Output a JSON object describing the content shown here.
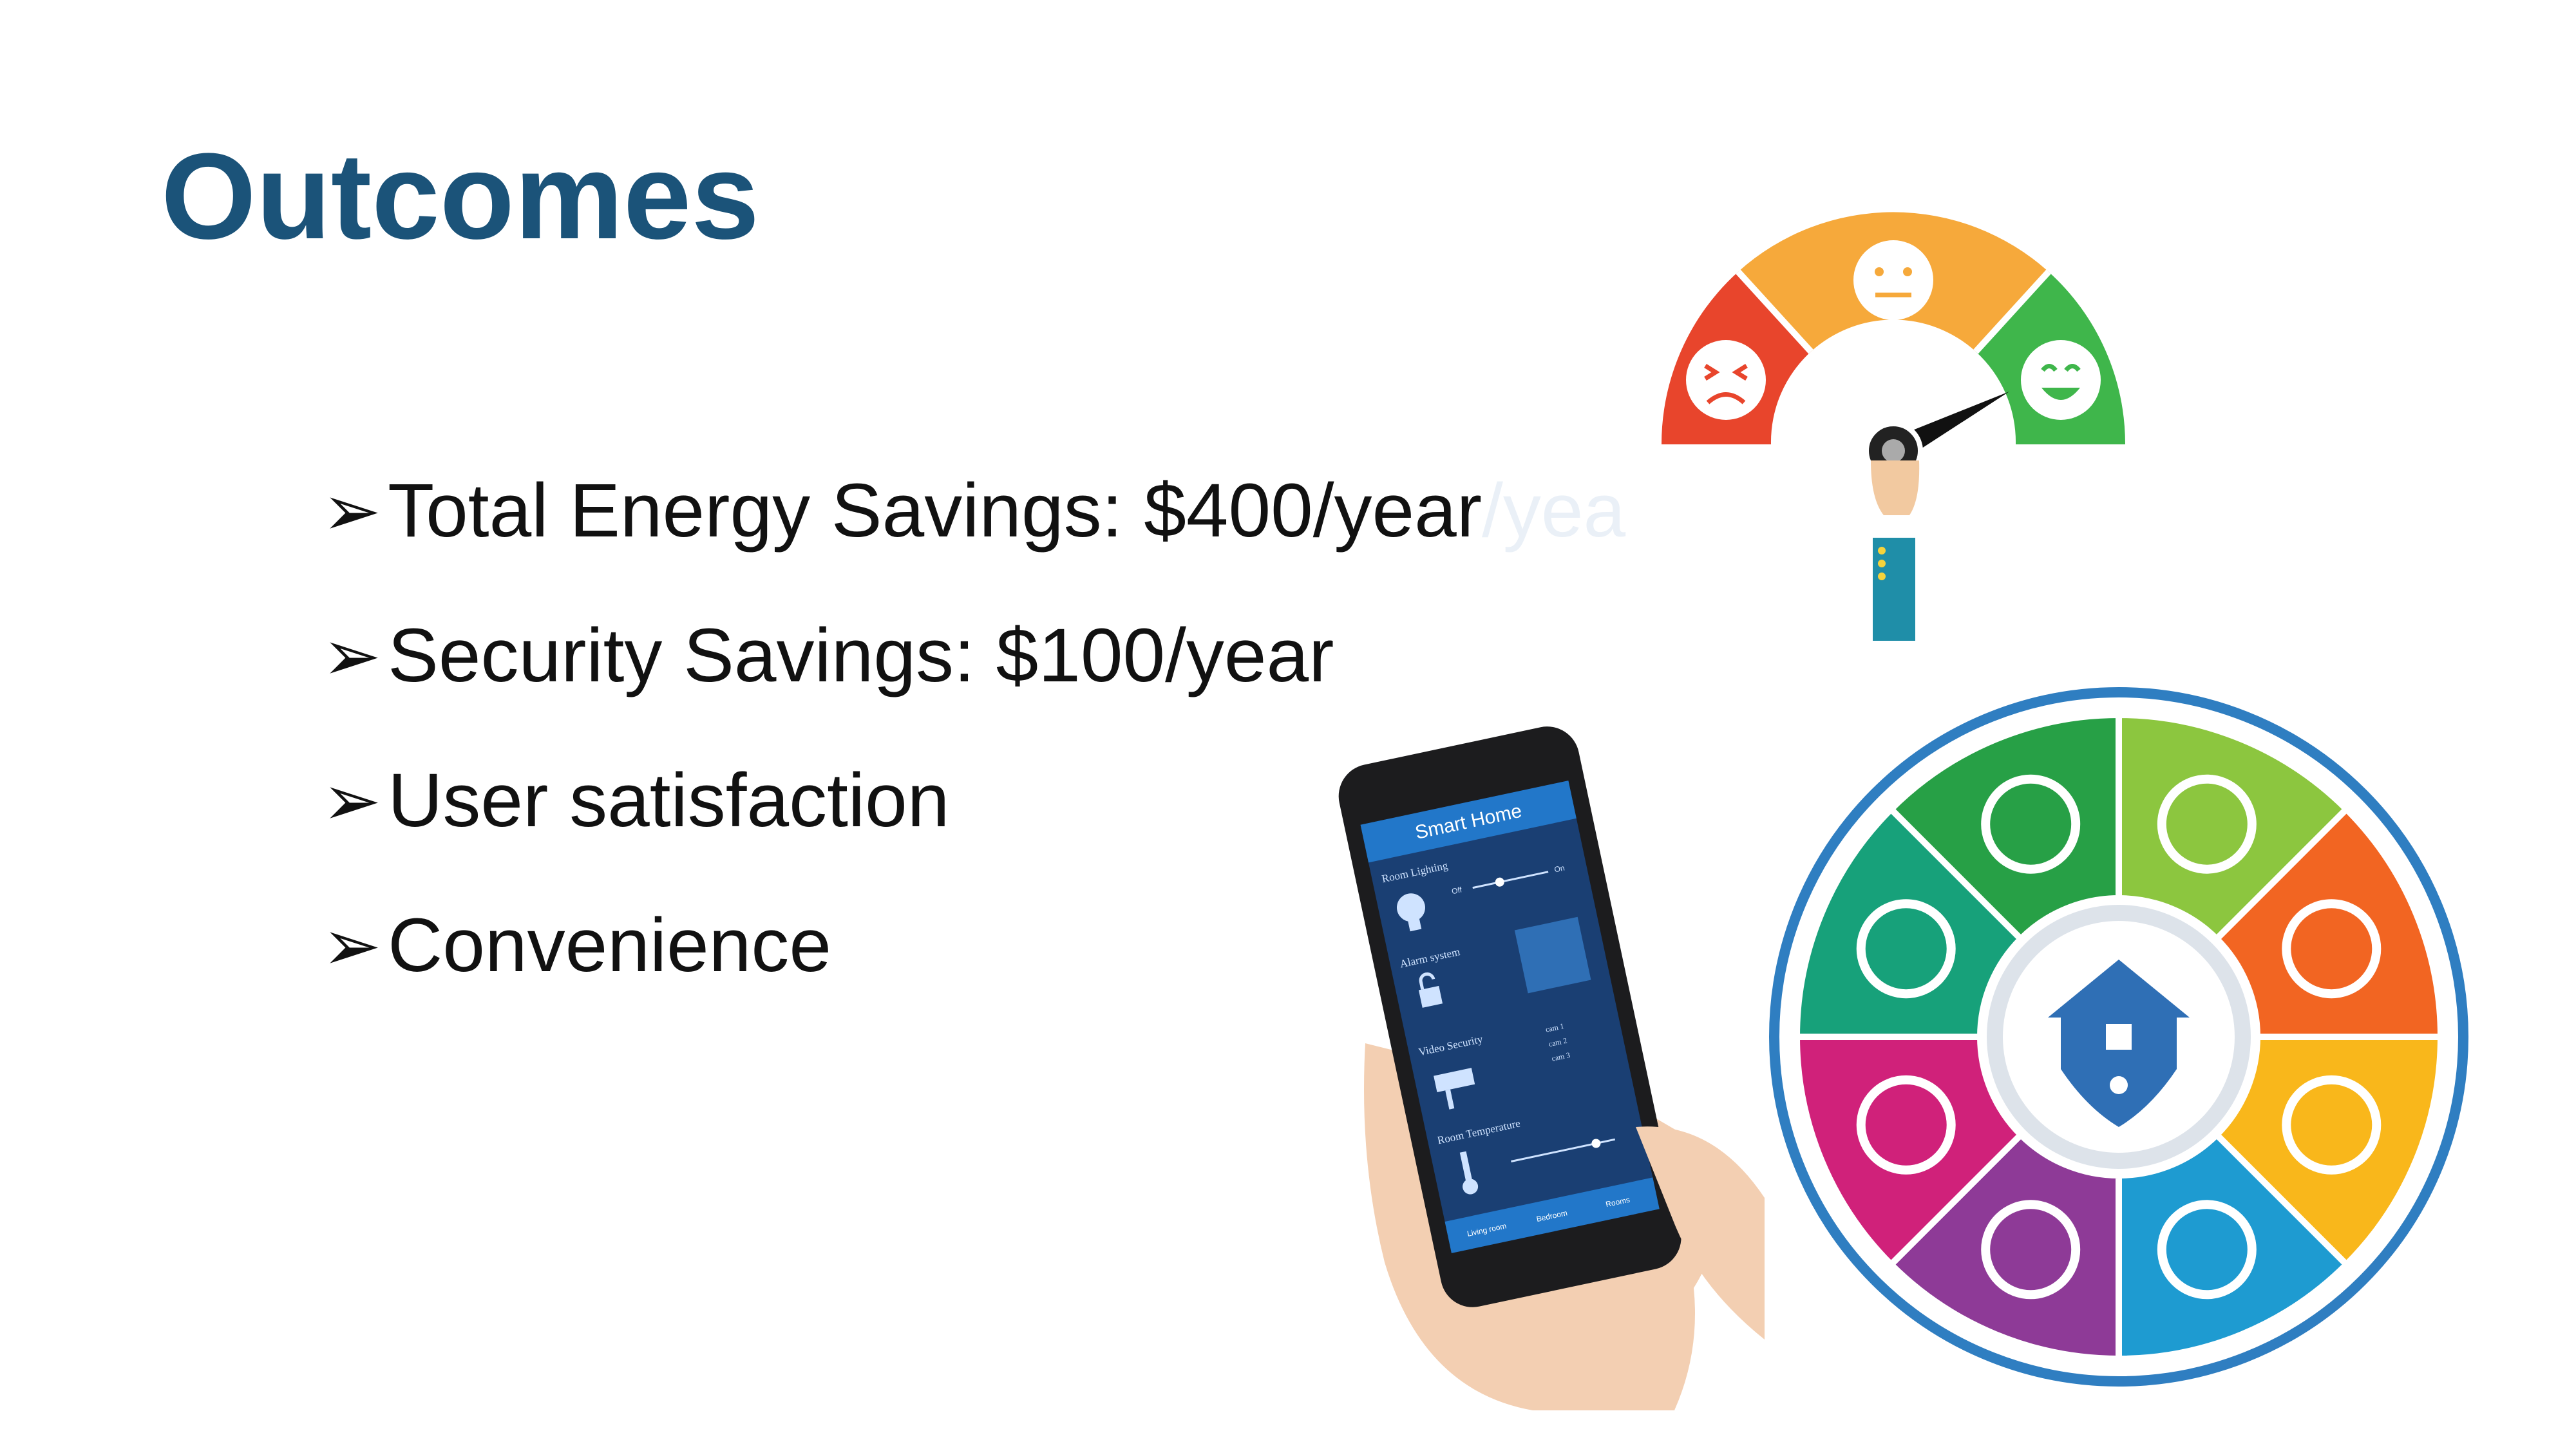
{
  "slide": {
    "title": "Outcomes",
    "bullets": [
      {
        "marker": "➢",
        "text": "Total Energy Savings: $400/year",
        "ghost_suffix": "/yea"
      },
      {
        "marker": "➢",
        "text": "Security Savings: $100/year",
        "ghost_suffix": ""
      },
      {
        "marker": "➢",
        "text": "User satisfaction",
        "ghost_suffix": ""
      },
      {
        "marker": "➢",
        "text": "Convenience",
        "ghost_suffix": ""
      }
    ]
  },
  "phone": {
    "header": "Smart Home",
    "rows": [
      "Room Lighting",
      "Alarm system",
      "Video Security",
      "Room Temperature"
    ],
    "toggle_off": "Off",
    "toggle_on": "On",
    "cams": [
      "cam 1",
      "cam 2",
      "cam 3"
    ],
    "tabs": [
      "Living room",
      "Bedroom",
      "Rooms"
    ]
  },
  "colors": {
    "title": "#1b5379",
    "gauge_red": "#e8452c",
    "gauge_orange": "#f6a93b",
    "gauge_green": "#3fb64b",
    "wheel_ring": "#2f7ec1"
  }
}
